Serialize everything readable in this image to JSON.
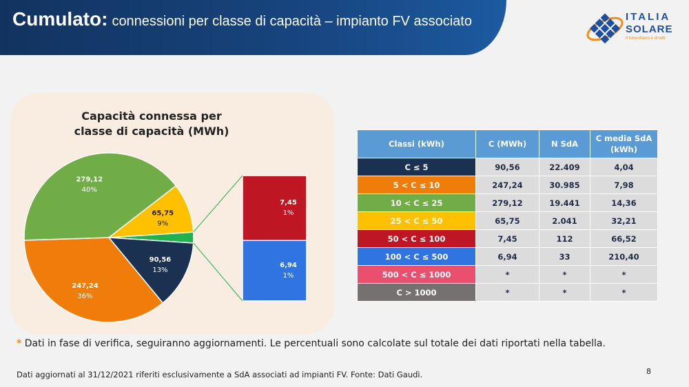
{
  "header": {
    "title_bold": "Cumulato:",
    "title_rest": "connessioni per classe di capacità – impianto FV associato"
  },
  "logo": {
    "line1": "ITALIA",
    "line2": "SOLARE",
    "tagline": "Il fotovoltaico è di tutti"
  },
  "chart_data": {
    "type": "pie",
    "title": "Capacità connessa per classe di capacità (MWh)",
    "title_line1": "Capacità connessa per",
    "title_line2": "classe di capacità (MWh)",
    "slices": [
      {
        "label": "C ≤ 5",
        "value": 90.56,
        "value_text": "90,56",
        "pct": "13%",
        "color": "#1b3152"
      },
      {
        "label": "5 < C ≤ 10",
        "value": 247.24,
        "value_text": "247,24",
        "pct": "36%",
        "color": "#f07d0a"
      },
      {
        "label": "10 < C ≤ 25",
        "value": 279.12,
        "value_text": "279,12",
        "pct": "40%",
        "color": "#70ad47"
      },
      {
        "label": "25 < C ≤ 50",
        "value": 65.75,
        "value_text": "65,75",
        "pct": "9%",
        "color": "#ffc000"
      }
    ],
    "other_color": "#22b14c",
    "secondary": [
      {
        "label": "50 < C ≤ 100",
        "value": 7.45,
        "value_text": "7,45",
        "pct": "1%",
        "color": "#be1622"
      },
      {
        "label": "100 < C ≤ 500",
        "value": 6.94,
        "value_text": "6,94",
        "pct": "1%",
        "color": "#2f74e0"
      }
    ]
  },
  "table": {
    "headers": [
      "Classi (kWh)",
      "C (MWh)",
      "N SdA",
      "C media SdA (kWh)"
    ],
    "rows": [
      {
        "cls": "C ≤ 5",
        "c": "90,56",
        "n": "22.409",
        "m": "4,04",
        "color": "#1b3152"
      },
      {
        "cls": "5 < C ≤ 10",
        "c": "247,24",
        "n": "30.985",
        "m": "7,98",
        "color": "#f07d0a"
      },
      {
        "cls": "10 < C ≤ 25",
        "c": "279,12",
        "n": "19.441",
        "m": "14,36",
        "color": "#70ad47"
      },
      {
        "cls": "25 < C ≤ 50",
        "c": "65,75",
        "n": "2.041",
        "m": "32,21",
        "color": "#ffc000"
      },
      {
        "cls": "50 < C ≤ 100",
        "c": "7,45",
        "n": "112",
        "m": "66,52",
        "color": "#be1622"
      },
      {
        "cls": "100 < C ≤ 500",
        "c": "6,94",
        "n": "33",
        "m": "210,40",
        "color": "#2f74e0"
      },
      {
        "cls": "500 < C ≤ 1000",
        "c": "*",
        "n": "*",
        "m": "*",
        "color": "#ea4f6e"
      },
      {
        "cls": "C  > 1000",
        "c": "*",
        "n": "*",
        "m": "*",
        "color": "#767171"
      }
    ]
  },
  "footer": {
    "star": "*",
    "note": "Dati in fase di verifica, seguiranno aggiornamenti. Le percentuali sono calcolate sul totale dei dati riportati nella tabella.",
    "source": "Dati aggiornati al 31/12/2021 riferiti esclusivamente a SdA associati ad impianti FV. Fonte: Dati Gaudì.",
    "page": "8"
  }
}
